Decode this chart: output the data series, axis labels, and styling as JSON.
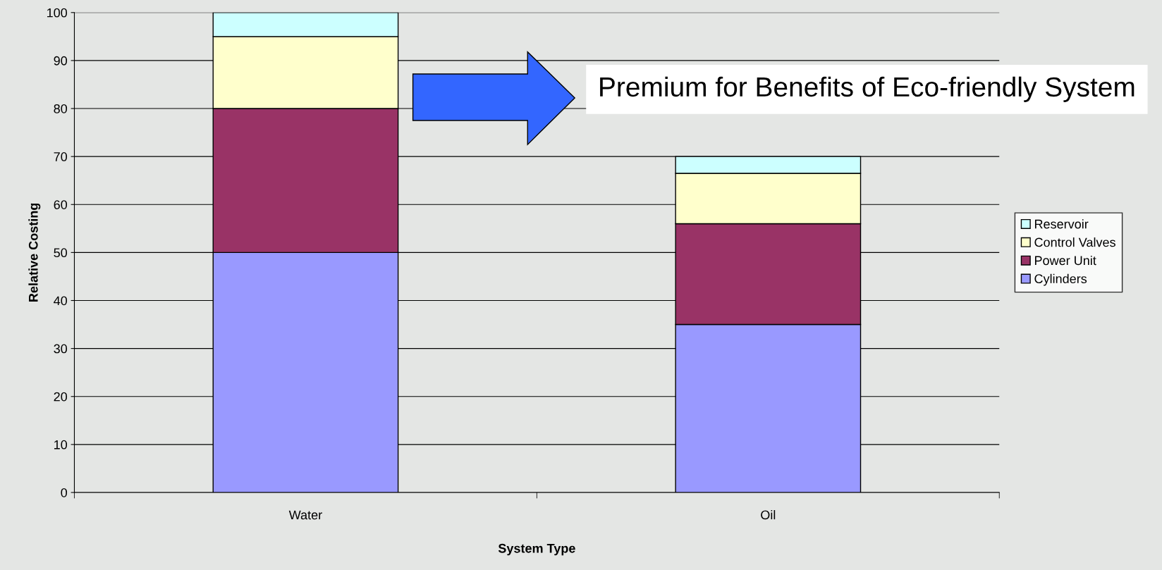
{
  "chart_data": {
    "type": "bar",
    "stacked": true,
    "xlabel": "System Type",
    "ylabel": "Relative Costing",
    "categories": [
      "Water",
      "Oil"
    ],
    "series": [
      {
        "name": "Cylinders",
        "color": "#9999ff",
        "values": [
          50,
          35
        ]
      },
      {
        "name": "Power Unit",
        "color": "#993366",
        "values": [
          30,
          21
        ]
      },
      {
        "name": "Control Valves",
        "color": "#ffffcc",
        "values": [
          15,
          10.5
        ]
      },
      {
        "name": "Reservoir",
        "color": "#ccffff",
        "values": [
          5,
          3.5
        ]
      }
    ],
    "ylim": [
      0,
      100
    ],
    "yticks": [
      0,
      10,
      20,
      30,
      40,
      50,
      60,
      70,
      80,
      90,
      100
    ],
    "grid": "y",
    "legend": "right",
    "annotations": [
      "Premium for Benefits of Eco-friendly System"
    ]
  }
}
